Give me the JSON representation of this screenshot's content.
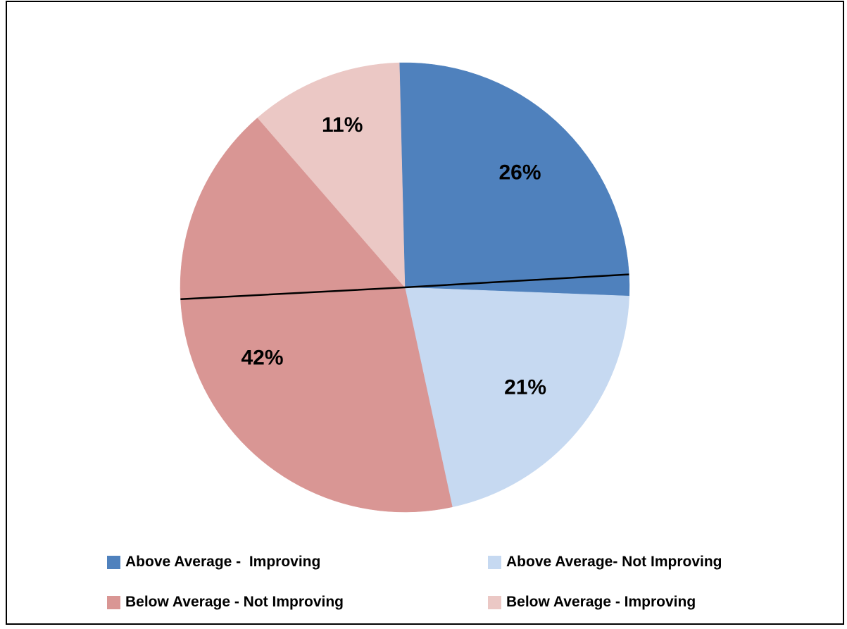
{
  "chart_data": {
    "type": "pie",
    "categories": [
      "Above Average -  Improving",
      "Above Average- Not Improving",
      "Below Average - Not Improving",
      "Below Average - Improving"
    ],
    "values": [
      26,
      21,
      42,
      11
    ],
    "labels": [
      "26%",
      "21%",
      "42%",
      "11%"
    ],
    "colors": [
      "#4f81bd",
      "#c6d9f1",
      "#d99694",
      "#ebc8c5"
    ],
    "legend_position": "bottom"
  }
}
